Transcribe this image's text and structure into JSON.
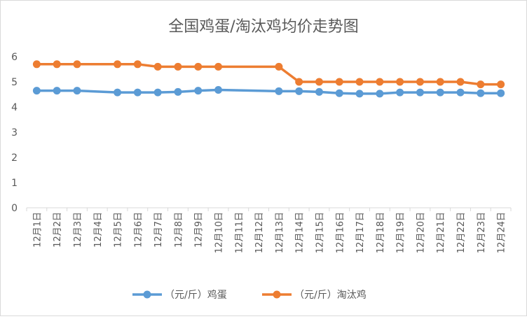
{
  "chart_data": {
    "type": "line",
    "title": "全国鸡蛋/淘汰鸡均价走势图",
    "xlabel": "",
    "ylabel": "",
    "ylim": [
      0,
      6
    ],
    "yticks": [
      0,
      1,
      2,
      3,
      4,
      5,
      6
    ],
    "grid": false,
    "legend_position": "bottom",
    "categories": [
      "12月1日",
      "12月2日",
      "12月3日",
      "12月4日",
      "12月5日",
      "12月6日",
      "12月7日",
      "12月8日",
      "12月9日",
      "12月10日",
      "12月11日",
      "12月12日",
      "12月13日",
      "12月14日",
      "12月15日",
      "12月16日",
      "12月17日",
      "12月18日",
      "12月19日",
      "12月20日",
      "12月21日",
      "12月22日",
      "12月23日",
      "12月24日"
    ],
    "series": [
      {
        "name": "（元/斤）鸡蛋",
        "color": "#5b9bd5",
        "values": [
          4.65,
          4.65,
          4.65,
          null,
          4.58,
          4.58,
          4.58,
          4.6,
          4.65,
          4.68,
          null,
          null,
          4.63,
          4.63,
          4.6,
          4.55,
          4.53,
          4.53,
          4.58,
          4.58,
          4.58,
          4.58,
          4.55,
          4.55
        ]
      },
      {
        "name": "（元/斤）淘汰鸡",
        "color": "#ed7d31",
        "values": [
          5.7,
          5.7,
          5.7,
          null,
          5.7,
          5.7,
          5.6,
          5.6,
          5.6,
          5.6,
          null,
          null,
          5.6,
          5.0,
          5.0,
          5.0,
          5.0,
          5.0,
          5.0,
          5.0,
          5.0,
          5.0,
          4.9,
          4.9
        ]
      }
    ]
  }
}
